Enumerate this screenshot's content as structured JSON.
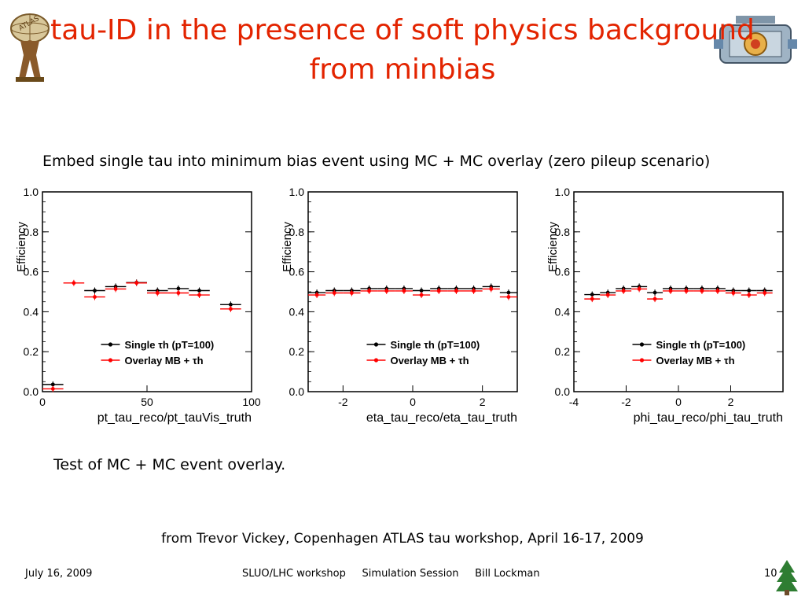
{
  "slide": {
    "title_line1": "tau-ID in the presence of soft physics background",
    "title_line2": "from minbias",
    "subtitle": "Embed single tau into minimum bias event using MC + MC overlay (zero pileup scenario)",
    "note": "Test of MC + MC event overlay.",
    "credit": "from Trevor Vickey, Copenhagen ATLAS tau workshop, April 16-17, 2009"
  },
  "logo": {
    "text": "ATLAS"
  },
  "footer": {
    "date": "July 16, 2009",
    "center": "SLUO/LHC workshop     Simulation Session     Bill Lockman",
    "page": "10"
  },
  "colors": {
    "title": "#e32400",
    "single": "#000000",
    "overlay": "#ff0000",
    "tree": "#2e7d32"
  },
  "chart_data": [
    {
      "type": "scatter",
      "xlabel": "pt_tau_reco/pt_tauVis_truth",
      "ylabel": "Efficiency",
      "xlim": [
        0,
        100
      ],
      "ylim": [
        0,
        1
      ],
      "xticks": [
        "0",
        "50",
        "100"
      ],
      "yticks": [
        "0.0",
        "0.2",
        "0.4",
        "0.6",
        "0.8",
        "1.0"
      ],
      "legend": {
        "position": "bottom-right",
        "entries": [
          "Single τh (pT=100)",
          "Overlay MB + τh"
        ]
      },
      "series": [
        {
          "name": "Single τh (pT=100)",
          "x": [
            5,
            25,
            35,
            45,
            55,
            65,
            75,
            90
          ],
          "y": [
            0.03,
            0.5,
            0.52,
            0.54,
            0.5,
            0.51,
            0.5,
            0.43
          ],
          "xerr": 5
        },
        {
          "name": "Overlay MB + τh",
          "x": [
            5,
            15,
            25,
            35,
            45,
            55,
            65,
            75,
            90
          ],
          "y": [
            0.02,
            0.55,
            0.48,
            0.52,
            0.55,
            0.5,
            0.5,
            0.49,
            0.42
          ],
          "xerr": 5
        }
      ]
    },
    {
      "type": "scatter",
      "xlabel": "eta_tau_reco/eta_tau_truth",
      "ylabel": "Efficiency",
      "xlim": [
        -3,
        3
      ],
      "ylim": [
        0,
        1
      ],
      "xticks": [
        "-2",
        "0",
        "2"
      ],
      "yticks": [
        "0.0",
        "0.2",
        "0.4",
        "0.6",
        "0.8",
        "1.0"
      ],
      "legend": {
        "position": "bottom-right",
        "entries": [
          "Single τh (pT=100)",
          "Overlay MB + τh"
        ]
      },
      "series": [
        {
          "name": "Single τh (pT=100)",
          "x": [
            -2.75,
            -2.25,
            -1.75,
            -1.25,
            -0.75,
            -0.25,
            0.25,
            0.75,
            1.25,
            1.75,
            2.25,
            2.75
          ],
          "y": [
            0.49,
            0.5,
            0.5,
            0.51,
            0.51,
            0.51,
            0.5,
            0.51,
            0.51,
            0.51,
            0.52,
            0.49
          ],
          "xerr": 0.25
        },
        {
          "name": "Overlay MB + τh",
          "x": [
            -2.75,
            -2.25,
            -1.75,
            -1.25,
            -0.75,
            -0.25,
            0.25,
            0.75,
            1.25,
            1.75,
            2.25,
            2.75
          ],
          "y": [
            0.49,
            0.5,
            0.5,
            0.51,
            0.51,
            0.51,
            0.49,
            0.51,
            0.51,
            0.51,
            0.52,
            0.48
          ],
          "xerr": 0.25
        }
      ]
    },
    {
      "type": "scatter",
      "xlabel": "phi_tau_reco/phi_tau_truth",
      "ylabel": "Efficiency",
      "xlim": [
        -4,
        4
      ],
      "ylim": [
        0,
        1
      ],
      "xticks": [
        "-4",
        "-2",
        "0",
        "2"
      ],
      "yticks": [
        "0.0",
        "0.2",
        "0.4",
        "0.6",
        "0.8",
        "1.0"
      ],
      "legend": {
        "position": "bottom-right",
        "entries": [
          "Single τh (pT=100)",
          "Overlay MB + τh"
        ]
      },
      "series": [
        {
          "name": "Single τh (pT=100)",
          "x": [
            -3.3,
            -2.7,
            -2.1,
            -1.5,
            -0.9,
            -0.3,
            0.3,
            0.9,
            1.5,
            2.1,
            2.7,
            3.3
          ],
          "y": [
            0.48,
            0.49,
            0.51,
            0.52,
            0.49,
            0.51,
            0.51,
            0.51,
            0.51,
            0.5,
            0.5,
            0.5
          ],
          "xerr": 0.3
        },
        {
          "name": "Overlay MB + τh",
          "x": [
            -3.3,
            -2.7,
            -2.1,
            -1.5,
            -0.9,
            -0.3,
            0.3,
            0.9,
            1.5,
            2.1,
            2.7,
            3.3
          ],
          "y": [
            0.47,
            0.49,
            0.51,
            0.52,
            0.47,
            0.51,
            0.51,
            0.51,
            0.51,
            0.5,
            0.49,
            0.5
          ],
          "xerr": 0.3
        }
      ]
    }
  ]
}
